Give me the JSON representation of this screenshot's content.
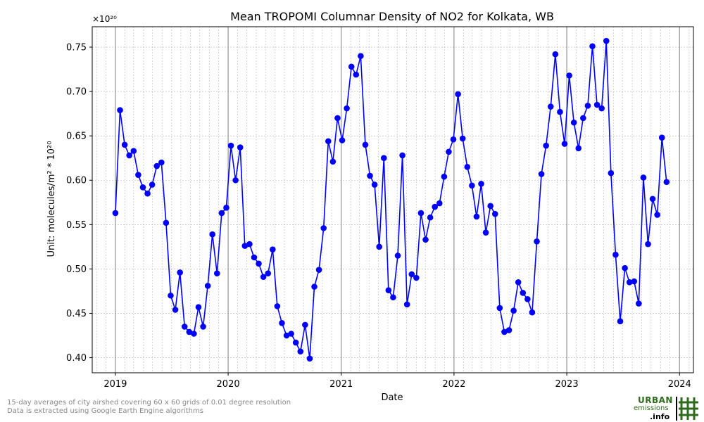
{
  "chart_data": {
    "type": "line",
    "title": "Mean TROPOMI Columnar Density of NO2 for Kolkata, WB",
    "xlabel": "Date",
    "ylabel": "Unit: molecules/m² * 10²⁰",
    "y_offset_label": "×10²⁰",
    "x_ticks": [
      "2019",
      "2020",
      "2021",
      "2022",
      "2023",
      "2024"
    ],
    "y_ticks": [
      "0.40",
      "0.45",
      "0.50",
      "0.55",
      "0.60",
      "0.65",
      "0.70",
      "0.75"
    ],
    "xlim": [
      "2018-10-18",
      "2024-02-15"
    ],
    "ylim": [
      0.383,
      0.773
    ],
    "grid": true,
    "series": [
      {
        "color": "#0000ff",
        "marker": "circle",
        "points": [
          [
            "2019-01-01",
            0.563
          ],
          [
            "2019-01-16",
            0.679
          ],
          [
            "2019-01-31",
            0.64
          ],
          [
            "2019-02-15",
            0.628
          ],
          [
            "2019-03-01",
            0.633
          ],
          [
            "2019-03-16",
            0.606
          ],
          [
            "2019-03-31",
            0.592
          ],
          [
            "2019-04-15",
            0.585
          ],
          [
            "2019-04-30",
            0.595
          ],
          [
            "2019-05-15",
            0.616
          ],
          [
            "2019-05-30",
            0.62
          ],
          [
            "2019-06-14",
            0.552
          ],
          [
            "2019-06-29",
            0.47
          ],
          [
            "2019-07-14",
            0.454
          ],
          [
            "2019-07-29",
            0.496
          ],
          [
            "2019-08-13",
            0.435
          ],
          [
            "2019-08-28",
            0.429
          ],
          [
            "2019-09-12",
            0.427
          ],
          [
            "2019-09-27",
            0.457
          ],
          [
            "2019-10-12",
            0.435
          ],
          [
            "2019-10-27",
            0.481
          ],
          [
            "2019-11-11",
            0.539
          ],
          [
            "2019-11-26",
            0.495
          ],
          [
            "2019-12-11",
            0.563
          ],
          [
            "2019-12-26",
            0.569
          ],
          [
            "2020-01-10",
            0.639
          ],
          [
            "2020-01-25",
            0.6
          ],
          [
            "2020-02-09",
            0.637
          ],
          [
            "2020-02-24",
            0.526
          ],
          [
            "2020-03-10",
            0.528
          ],
          [
            "2020-03-25",
            0.513
          ],
          [
            "2020-04-09",
            0.506
          ],
          [
            "2020-04-24",
            0.491
          ],
          [
            "2020-05-09",
            0.495
          ],
          [
            "2020-05-24",
            0.522
          ],
          [
            "2020-06-08",
            0.458
          ],
          [
            "2020-06-23",
            0.439
          ],
          [
            "2020-07-08",
            0.425
          ],
          [
            "2020-07-23",
            0.427
          ],
          [
            "2020-08-07",
            0.417
          ],
          [
            "2020-08-22",
            0.407
          ],
          [
            "2020-09-06",
            0.437
          ],
          [
            "2020-09-21",
            0.399
          ],
          [
            "2020-10-06",
            0.48
          ],
          [
            "2020-10-21",
            0.499
          ],
          [
            "2020-11-05",
            0.546
          ],
          [
            "2020-11-20",
            0.644
          ],
          [
            "2020-12-05",
            0.621
          ],
          [
            "2020-12-20",
            0.67
          ],
          [
            "2021-01-04",
            0.645
          ],
          [
            "2021-01-19",
            0.681
          ],
          [
            "2021-02-03",
            0.728
          ],
          [
            "2021-02-18",
            0.719
          ],
          [
            "2021-03-05",
            0.74
          ],
          [
            "2021-03-20",
            0.64
          ],
          [
            "2021-04-04",
            0.605
          ],
          [
            "2021-04-19",
            0.595
          ],
          [
            "2021-05-04",
            0.525
          ],
          [
            "2021-05-19",
            0.625
          ],
          [
            "2021-06-03",
            0.476
          ],
          [
            "2021-06-18",
            0.468
          ],
          [
            "2021-07-03",
            0.515
          ],
          [
            "2021-07-18",
            0.628
          ],
          [
            "2021-08-02",
            0.46
          ],
          [
            "2021-08-17",
            0.494
          ],
          [
            "2021-09-01",
            0.49
          ],
          [
            "2021-09-16",
            0.563
          ],
          [
            "2021-10-01",
            0.533
          ],
          [
            "2021-10-16",
            0.558
          ],
          [
            "2021-10-31",
            0.57
          ],
          [
            "2021-11-15",
            0.574
          ],
          [
            "2021-11-30",
            0.604
          ],
          [
            "2021-12-15",
            0.632
          ],
          [
            "2021-12-30",
            0.646
          ],
          [
            "2022-01-14",
            0.697
          ],
          [
            "2022-01-29",
            0.647
          ],
          [
            "2022-02-13",
            0.615
          ],
          [
            "2022-02-28",
            0.594
          ],
          [
            "2022-03-15",
            0.559
          ],
          [
            "2022-03-30",
            0.596
          ],
          [
            "2022-04-14",
            0.541
          ],
          [
            "2022-04-29",
            0.571
          ],
          [
            "2022-05-14",
            0.562
          ],
          [
            "2022-05-29",
            0.456
          ],
          [
            "2022-06-13",
            0.429
          ],
          [
            "2022-06-28",
            0.431
          ],
          [
            "2022-07-13",
            0.453
          ],
          [
            "2022-07-28",
            0.485
          ],
          [
            "2022-08-12",
            0.473
          ],
          [
            "2022-08-27",
            0.466
          ],
          [
            "2022-09-11",
            0.451
          ],
          [
            "2022-09-26",
            0.531
          ],
          [
            "2022-10-11",
            0.607
          ],
          [
            "2022-10-26",
            0.639
          ],
          [
            "2022-11-10",
            0.683
          ],
          [
            "2022-11-25",
            0.742
          ],
          [
            "2022-12-10",
            0.677
          ],
          [
            "2022-12-25",
            0.641
          ],
          [
            "2023-01-09",
            0.718
          ],
          [
            "2023-01-24",
            0.665
          ],
          [
            "2023-02-08",
            0.636
          ],
          [
            "2023-02-23",
            0.67
          ],
          [
            "2023-03-10",
            0.684
          ],
          [
            "2023-03-25",
            0.751
          ],
          [
            "2023-04-09",
            0.685
          ],
          [
            "2023-04-24",
            0.681
          ],
          [
            "2023-05-09",
            0.757
          ],
          [
            "2023-05-24",
            0.608
          ],
          [
            "2023-06-08",
            0.516
          ],
          [
            "2023-06-23",
            0.441
          ],
          [
            "2023-07-08",
            0.501
          ],
          [
            "2023-07-23",
            0.485
          ],
          [
            "2023-08-07",
            0.486
          ],
          [
            "2023-08-22",
            0.461
          ],
          [
            "2023-09-06",
            0.603
          ],
          [
            "2023-09-21",
            0.528
          ],
          [
            "2023-10-06",
            0.579
          ],
          [
            "2023-10-21",
            0.561
          ],
          [
            "2023-11-05",
            0.648
          ],
          [
            "2023-11-20",
            0.598
          ]
        ]
      }
    ]
  },
  "footnotes": [
    "15-day averages of city airshed covering 60 x 60 grids of 0.01 degree resolution",
    "Data is extracted using Google Earth Engine algorithms"
  ],
  "logo": {
    "line1": "URBAN",
    "line2": "emissions",
    "line3": ".info"
  },
  "colors": {
    "series": "#0000ff",
    "grid": "#b0b0b0",
    "year_line": "#808080",
    "logo_green": "#2f6b1f"
  }
}
